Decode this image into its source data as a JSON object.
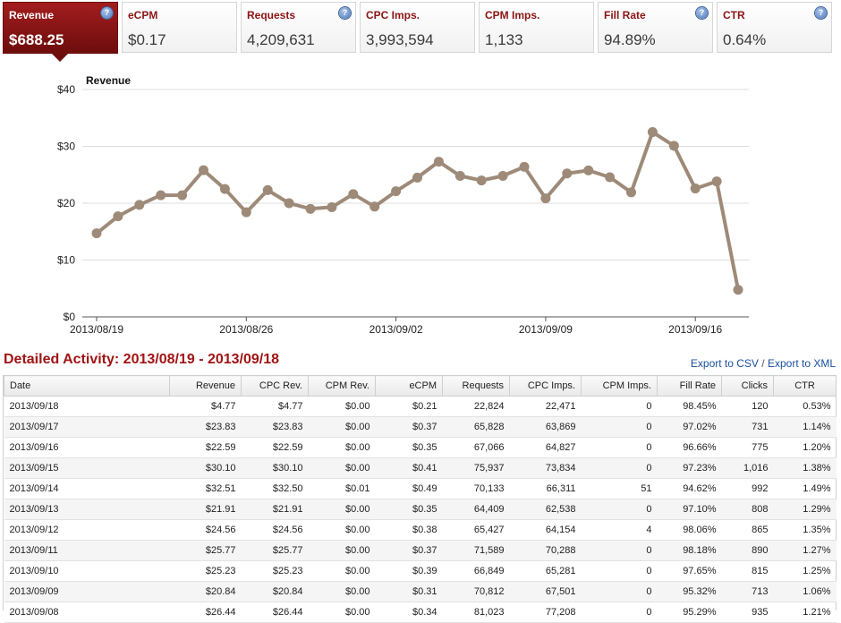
{
  "tiles": [
    {
      "label": "Revenue",
      "value": "$688.25",
      "help": true,
      "active": true
    },
    {
      "label": "eCPM",
      "value": "$0.17",
      "help": false,
      "active": false
    },
    {
      "label": "Requests",
      "value": "4,209,631",
      "help": true,
      "active": false
    },
    {
      "label": "CPC Imps.",
      "value": "3,993,594",
      "help": false,
      "active": false
    },
    {
      "label": "CPM Imps.",
      "value": "1,133",
      "help": false,
      "active": false
    },
    {
      "label": "Fill Rate",
      "value": "94.89%",
      "help": true,
      "active": false
    },
    {
      "label": "CTR",
      "value": "0.64%",
      "help": true,
      "active": false
    }
  ],
  "help_glyph": "?",
  "chart_data": {
    "type": "line",
    "title": "Revenue",
    "y_ticks": [
      "$0",
      "$10",
      "$20",
      "$30",
      "$40"
    ],
    "ylim": [
      0,
      40
    ],
    "x_tick_labels": [
      "2013/08/19",
      "2013/08/26",
      "2013/09/02",
      "2013/09/09",
      "2013/09/16"
    ],
    "x_tick_indices": [
      0,
      7,
      14,
      21,
      28
    ],
    "grid": true,
    "color": "#9e8a78",
    "values": [
      14.7,
      17.7,
      19.7,
      21.4,
      21.4,
      25.8,
      22.5,
      18.4,
      22.3,
      20.0,
      19.0,
      19.3,
      21.6,
      19.4,
      22.1,
      24.5,
      27.3,
      24.8,
      24.0,
      24.8,
      26.4,
      20.84,
      25.23,
      25.77,
      24.56,
      21.91,
      32.51,
      30.1,
      22.59,
      23.83,
      4.77
    ]
  },
  "section": {
    "title": "Detailed Activity: 2013/08/19 - 2013/09/18",
    "export_csv": "Export to CSV",
    "separator": "/",
    "export_xml": "Export to XML"
  },
  "table": {
    "columns": [
      "Date",
      "Revenue",
      "CPC Rev.",
      "CPM Rev.",
      "eCPM",
      "Requests",
      "CPC Imps.",
      "CPM Imps.",
      "Fill Rate",
      "Clicks",
      "CTR"
    ],
    "rows": [
      [
        "2013/09/18",
        "$4.77",
        "$4.77",
        "$0.00",
        "$0.21",
        "22,824",
        "22,471",
        "0",
        "98.45%",
        "120",
        "0.53%"
      ],
      [
        "2013/09/17",
        "$23.83",
        "$23.83",
        "$0.00",
        "$0.37",
        "65,828",
        "63,869",
        "0",
        "97.02%",
        "731",
        "1.14%"
      ],
      [
        "2013/09/16",
        "$22.59",
        "$22.59",
        "$0.00",
        "$0.35",
        "67,066",
        "64,827",
        "0",
        "96.66%",
        "775",
        "1.20%"
      ],
      [
        "2013/09/15",
        "$30.10",
        "$30.10",
        "$0.00",
        "$0.41",
        "75,937",
        "73,834",
        "0",
        "97.23%",
        "1,016",
        "1.38%"
      ],
      [
        "2013/09/14",
        "$32.51",
        "$32.50",
        "$0.01",
        "$0.49",
        "70,133",
        "66,311",
        "51",
        "94.62%",
        "992",
        "1.49%"
      ],
      [
        "2013/09/13",
        "$21.91",
        "$21.91",
        "$0.00",
        "$0.35",
        "64,409",
        "62,538",
        "0",
        "97.10%",
        "808",
        "1.29%"
      ],
      [
        "2013/09/12",
        "$24.56",
        "$24.56",
        "$0.00",
        "$0.38",
        "65,427",
        "64,154",
        "4",
        "98.06%",
        "865",
        "1.35%"
      ],
      [
        "2013/09/11",
        "$25.77",
        "$25.77",
        "$0.00",
        "$0.37",
        "71,589",
        "70,288",
        "0",
        "98.18%",
        "890",
        "1.27%"
      ],
      [
        "2013/09/10",
        "$25.23",
        "$25.23",
        "$0.00",
        "$0.39",
        "66,849",
        "65,281",
        "0",
        "97.65%",
        "815",
        "1.25%"
      ],
      [
        "2013/09/09",
        "$20.84",
        "$20.84",
        "$0.00",
        "$0.31",
        "70,812",
        "67,501",
        "0",
        "95.32%",
        "713",
        "1.06%"
      ],
      [
        "2013/09/08",
        "$26.44",
        "$26.44",
        "$0.00",
        "$0.34",
        "81,023",
        "77,208",
        "0",
        "95.29%",
        "935",
        "1.21%"
      ]
    ]
  }
}
